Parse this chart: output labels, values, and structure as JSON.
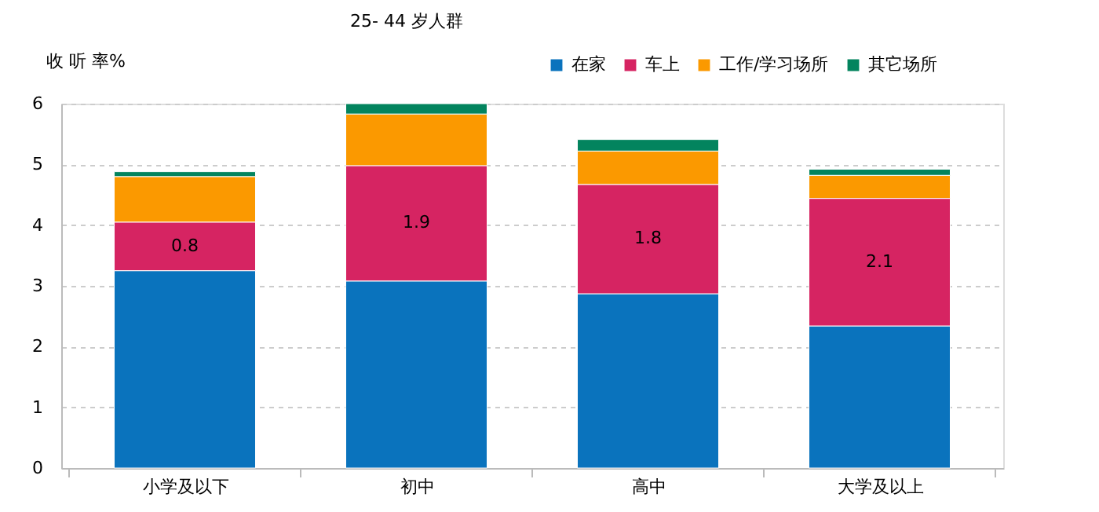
{
  "chart_data": {
    "type": "bar",
    "title": "25- 44 岁人群",
    "ylabel": "收 听 率%",
    "categories": [
      "小学及以下",
      "初中",
      "高中",
      "大学及以上"
    ],
    "stacked": true,
    "series": [
      {
        "name": "在家",
        "color": "#0a73bd",
        "values": [
          3.25,
          3.08,
          2.87,
          2.34
        ]
      },
      {
        "name": "车上",
        "color": "#d62462",
        "values": [
          0.8,
          1.9,
          1.8,
          2.1
        ],
        "value_labels": [
          "0.8",
          "1.9",
          "1.8",
          "2.1"
        ]
      },
      {
        "name": "工作/学习场所",
        "color": "#fb9900",
        "values": [
          0.75,
          0.85,
          0.55,
          0.38
        ]
      },
      {
        "name": "其它场所",
        "color": "#03845e",
        "values": [
          0.08,
          0.17,
          0.19,
          0.1
        ]
      }
    ],
    "ylim": [
      0,
      6
    ],
    "yticks": [
      0,
      1,
      2,
      3,
      4,
      5,
      6
    ],
    "grid": "y",
    "legend": "top right"
  }
}
